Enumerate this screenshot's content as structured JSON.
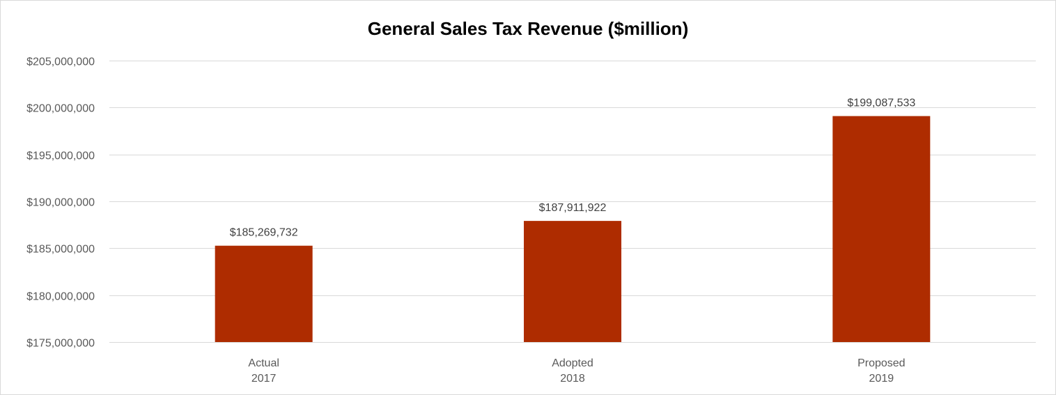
{
  "chart_data": {
    "type": "bar",
    "title": "General Sales Tax Revenue ($million)",
    "xlabel": "",
    "ylabel": "",
    "categories": [
      [
        "Actual",
        "2017"
      ],
      [
        "Adopted",
        "2018"
      ],
      [
        "Proposed",
        "2019"
      ]
    ],
    "values": [
      185269732,
      187911922,
      199087533
    ],
    "data_labels": [
      "$185,269,732",
      "$187,911,922",
      "$199,087,533"
    ],
    "ylim": [
      175000000,
      205000000
    ],
    "yticks": [
      175000000,
      180000000,
      185000000,
      190000000,
      195000000,
      200000000,
      205000000
    ],
    "ytick_labels": [
      "$175,000,000",
      "$180,000,000",
      "$185,000,000",
      "$190,000,000",
      "$195,000,000",
      "$200,000,000",
      "$205,000,000"
    ],
    "grid": true,
    "legend": "none",
    "bar_color": "#ae2c00",
    "grid_color": "#d9d9d9"
  }
}
